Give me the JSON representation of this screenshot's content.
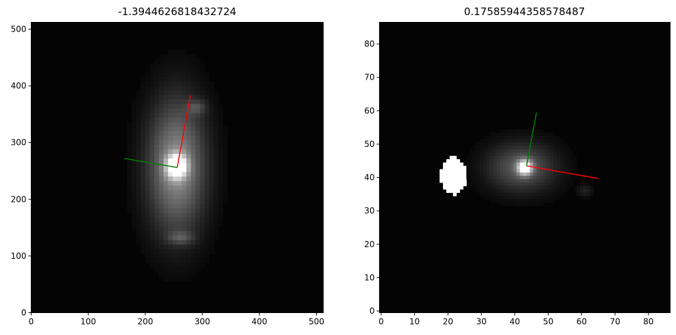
{
  "chart_data": [
    {
      "type": "heatmap",
      "title": "-1.3944626818432724",
      "colormap": "gray",
      "xlim": [
        0,
        512
      ],
      "ylim": [
        0,
        512
      ],
      "xticks": [
        0,
        100,
        200,
        300,
        400,
        500
      ],
      "yticks": [
        0,
        100,
        200,
        300,
        400,
        500
      ],
      "xtick_labels": [
        "0",
        "100",
        "200",
        "300",
        "400",
        "500"
      ],
      "ytick_labels": [
        "0",
        "100",
        "200",
        "300",
        "400",
        "500"
      ],
      "blobs": [
        {
          "x": 255,
          "y": 258,
          "sx": 35,
          "sy": 80,
          "intensity": 0.55
        },
        {
          "x": 255,
          "y": 258,
          "sx": 12,
          "sy": 14,
          "intensity": 1.0
        },
        {
          "x": 290,
          "y": 362,
          "sx": 12,
          "sy": 9,
          "intensity": 0.2
        },
        {
          "x": 262,
          "y": 132,
          "sx": 16,
          "sy": 8,
          "intensity": 0.22
        }
      ],
      "lines": [
        {
          "color": "#ff0000",
          "points": [
            [
              256,
              256
            ],
            [
              279,
              383
            ]
          ]
        },
        {
          "color": "#008000",
          "points": [
            [
              256,
              256
            ],
            [
              163,
              272
            ]
          ]
        }
      ]
    },
    {
      "type": "heatmap",
      "title": "0.17585944358578487",
      "colormap": "gray",
      "xlim": [
        -0.5,
        86.5
      ],
      "ylim": [
        -0.5,
        86.5
      ],
      "xticks": [
        0,
        10,
        20,
        30,
        40,
        50,
        60,
        70,
        80
      ],
      "yticks": [
        0,
        10,
        20,
        30,
        40,
        50,
        60,
        70,
        80
      ],
      "xtick_labels": [
        "0",
        "10",
        "20",
        "30",
        "40",
        "50",
        "60",
        "70",
        "80"
      ],
      "ytick_labels": [
        "0",
        "10",
        "20",
        "30",
        "40",
        "50",
        "60",
        "70",
        "80"
      ],
      "blobs": [
        {
          "x": 42,
          "y": 43,
          "sx": 7,
          "sy": 5,
          "intensity": 0.35
        },
        {
          "x": 43,
          "y": 43,
          "sx": 1.5,
          "sy": 1.5,
          "intensity": 1.0
        },
        {
          "x": 61,
          "y": 36,
          "sx": 1.5,
          "sy": 1.2,
          "intensity": 0.12
        }
      ],
      "mask": {
        "x": 21.5,
        "y": 40.5,
        "rx": 3.8,
        "ry": 5.5,
        "value": 1.0
      },
      "lines": [
        {
          "color": "#ff0000",
          "points": [
            [
              43.5,
              43.5
            ],
            [
              65,
              39.7
            ]
          ]
        },
        {
          "color": "#008000",
          "points": [
            [
              43.5,
              43.5
            ],
            [
              46.5,
              59.5
            ]
          ]
        }
      ]
    }
  ]
}
